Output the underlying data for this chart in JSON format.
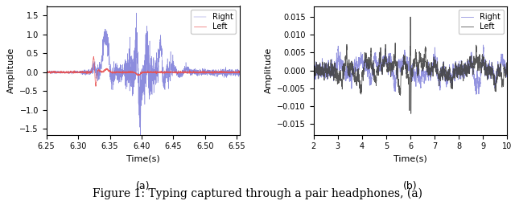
{
  "panel_a": {
    "xlim": [
      6.25,
      6.555
    ],
    "ylim": [
      -1.65,
      1.75
    ],
    "xlabel": "Time(s)",
    "ylabel": "Amplitude",
    "xticks": [
      6.25,
      6.3,
      6.35,
      6.4,
      6.45,
      6.5,
      6.55
    ],
    "xtick_labels": [
      "6.25",
      "6.30",
      "6.35",
      "6.40",
      "6.45",
      "6.50",
      "6.55"
    ],
    "yticks": [
      -1.5,
      -1.0,
      -0.5,
      0.0,
      0.5,
      1.0,
      1.5
    ],
    "left_color": "#e85050",
    "right_color": "#7878d8",
    "left_label": "Left",
    "right_label": "Right",
    "subtitle": "(a)",
    "t_start": 6.25,
    "t_end": 6.555
  },
  "panel_b": {
    "xlim": [
      2,
      10
    ],
    "ylim": [
      -0.018,
      0.018
    ],
    "xlabel": "Time(s)",
    "ylabel": "Amplitude",
    "xticks": [
      2,
      3,
      4,
      5,
      6,
      7,
      8,
      9,
      10
    ],
    "xtick_labels": [
      "2",
      "3",
      "4",
      "5",
      "6",
      "7",
      "8",
      "9",
      "10"
    ],
    "yticks": [
      -0.015,
      -0.01,
      -0.005,
      0.0,
      0.005,
      0.01,
      0.015
    ],
    "left_color": "#444444",
    "right_color": "#7878d8",
    "left_label": "Left",
    "right_label": "Right",
    "subtitle": "(b)",
    "t_start": 2,
    "t_end": 10
  },
  "figure_caption": "Figure 1: Typing captured through a pair headphones, (a)",
  "caption_fontsize": 10,
  "subtitle_fontsize": 9,
  "background_color": "#ffffff"
}
